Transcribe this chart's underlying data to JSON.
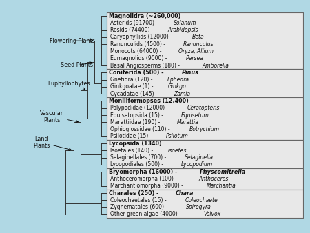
{
  "background_color": "#b0d8e4",
  "panel_bg": "#f2f2f2",
  "panel_border": "#777777",
  "groups": [
    {
      "header": "Magnolidra (~260,000)",
      "header_bold": true,
      "items": [
        [
          "Asterids (91700) - ",
          "Solanum"
        ],
        [
          "Rosids (74400) - ",
          "Arabidopsis"
        ],
        [
          "Caryophyllids (12000) - ",
          "Beta"
        ],
        [
          "Ranunculids (4500) - ",
          "Ranunculus"
        ],
        [
          "Monocots (64000) - ",
          "Oryza, Allium"
        ],
        [
          "Eumagnolids (9000) - ",
          "Persea"
        ],
        [
          "Basal Angiosperms (180) - ",
          "Amborella"
        ]
      ],
      "border_top": true
    },
    {
      "header": "Coniferida (500) - Pinus",
      "header_bold": true,
      "header_italic": "Pinus",
      "items": [
        [
          "Gnetidra (120) - ",
          "Ephedra"
        ],
        [
          "Ginkgoatae (1) - ",
          "Ginkgo"
        ],
        [
          "Cycadatae (145) - ",
          "Zamia"
        ]
      ],
      "border_top": true
    },
    {
      "header": "Moniliformopses (12,400)",
      "header_bold": true,
      "items": [
        [
          "Polypodidae (12000) - ",
          "Ceratopteris"
        ],
        [
          "Equisetopsida (15) - ",
          "Equisetum"
        ],
        [
          "Marattiidae (190) - ",
          "Marattia"
        ],
        [
          "Ophioglossidae (110) - ",
          "Botrychium"
        ],
        [
          "Psilotidae (15) - ",
          "Psilotum"
        ]
      ],
      "border_top": true
    },
    {
      "header": "Lycopsida (1340)",
      "header_bold": true,
      "items": [
        [
          "Isoetales (140) - ",
          "Isoetes"
        ],
        [
          "Selaginellales (700) - ",
          "Selaginella"
        ],
        [
          "Lycopodiales (500) - ",
          "Lycopodium"
        ]
      ],
      "border_top": true
    },
    {
      "header": "Bryomorpha (16000) - Physcomitrella",
      "header_bold": true,
      "header_italic": "Physcomitrella",
      "items": [
        [
          "Anthoceromorpha (100) - ",
          "Anthoceros"
        ],
        [
          "Marchantiomorpha (9000) - ",
          "Marchantia"
        ]
      ],
      "border_top": true
    },
    {
      "header": "Charales (250) - Chara",
      "header_bold": false,
      "header_italic": "Chara",
      "items": [
        [
          "Coleochaetales (15) - ",
          "Coleochaete"
        ],
        [
          "Zygnematales (600) - ",
          "Spirogyra"
        ],
        [
          "Other green algae (4000) - ",
          "Volvox"
        ]
      ],
      "border_top": true
    }
  ],
  "tree_color": "#333333",
  "text_color": "#111111",
  "font_size": 5.5,
  "font_size_header": 5.8,
  "font_size_label": 5.8
}
